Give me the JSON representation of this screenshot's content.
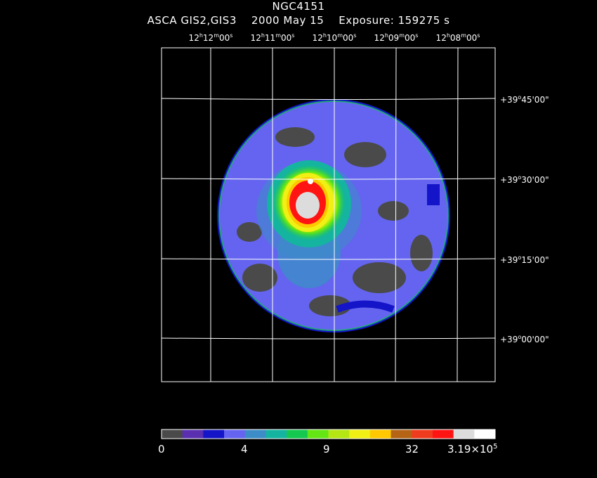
{
  "header": {
    "title": "NGC4151",
    "subtitle": "ASCA GIS2,GIS3    2000 May 15    Exposure: 159275 s"
  },
  "ra_ticks": [
    {
      "h": "12",
      "m": "12",
      "s": "00"
    },
    {
      "h": "12",
      "m": "11",
      "s": "00"
    },
    {
      "h": "12",
      "m": "10",
      "s": "00"
    },
    {
      "h": "12",
      "m": "09",
      "s": "00"
    },
    {
      "h": "12",
      "m": "08",
      "s": "00"
    }
  ],
  "dec_ticks": [
    {
      "deg": "+39",
      "min": "45",
      "sec": "00"
    },
    {
      "deg": "+39",
      "min": "30",
      "sec": "00"
    },
    {
      "deg": "+39",
      "min": "15",
      "sec": "00"
    },
    {
      "deg": "+39",
      "min": "00",
      "sec": "00"
    }
  ],
  "colorbar": {
    "colors": [
      "#4a4a4a",
      "#5a2fb0",
      "#1414c8",
      "#6464f0",
      "#3c8cc8",
      "#14b4a0",
      "#14c850",
      "#64e614",
      "#b4e614",
      "#f0f014",
      "#ffc800",
      "#b46414",
      "#f03c1e",
      "#ff1414",
      "#dcdcdc",
      "#ffffff"
    ],
    "labels": [
      "0",
      "4",
      "9",
      "32"
    ],
    "max_label": {
      "mantissa": "3.19",
      "exponent": "5"
    }
  },
  "image_palette": {
    "background_dark": "#4a4a4a",
    "low": "#6464f0",
    "mid": "#14c850",
    "high": "#f0f014",
    "peak": "#ff1414",
    "core": "#dcdcdc"
  }
}
